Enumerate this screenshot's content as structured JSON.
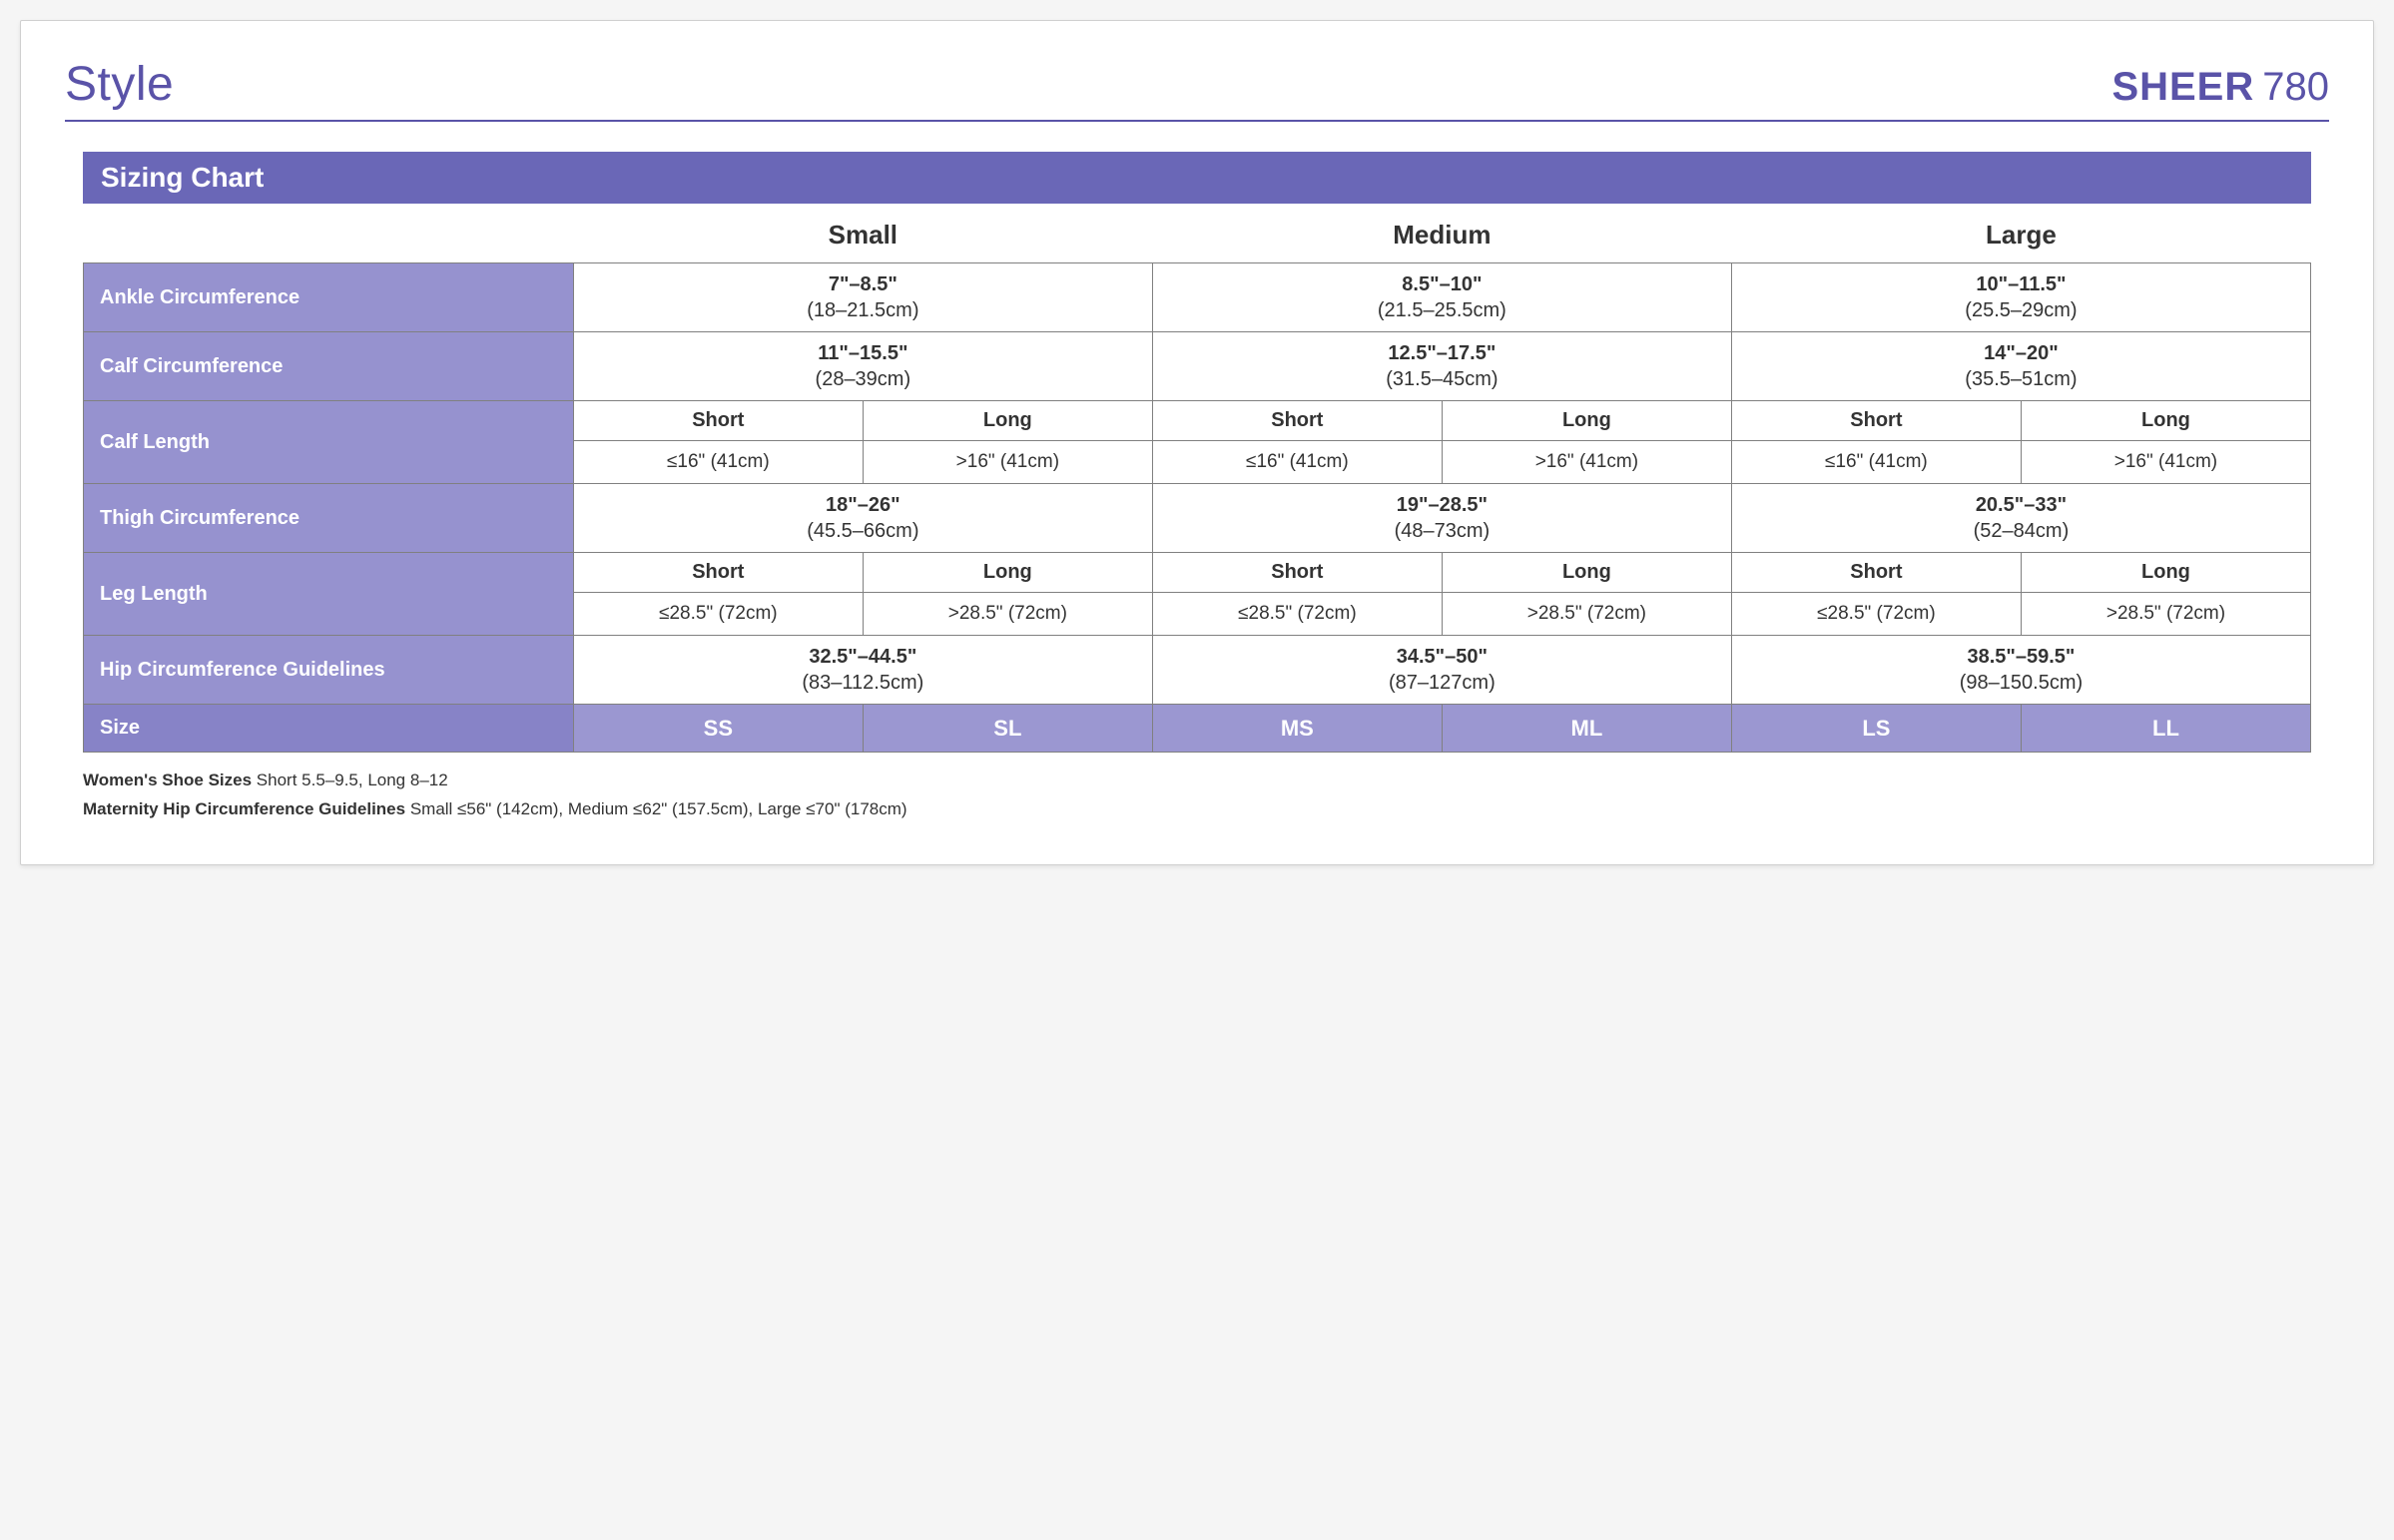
{
  "header": {
    "style_label": "Style",
    "product_name": "SHEER",
    "product_num": "780"
  },
  "section_title": "Sizing Chart",
  "size_cols": [
    "Small",
    "Medium",
    "Large"
  ],
  "sub_cols": {
    "short": "Short",
    "long": "Long"
  },
  "rows": {
    "ankle": {
      "label": "Ankle Circumference",
      "small": {
        "main": "7\"–8.5\"",
        "sub": "(18–21.5cm)"
      },
      "medium": {
        "main": "8.5\"–10\"",
        "sub": "(21.5–25.5cm)"
      },
      "large": {
        "main": "10\"–11.5\"",
        "sub": "(25.5–29cm)"
      }
    },
    "calf": {
      "label": "Calf Circumference",
      "small": {
        "main": "11\"–15.5\"",
        "sub": "(28–39cm)"
      },
      "medium": {
        "main": "12.5\"–17.5\"",
        "sub": "(31.5–45cm)"
      },
      "large": {
        "main": "14\"–20\"",
        "sub": "(35.5–51cm)"
      }
    },
    "calflen": {
      "label": "Calf Length",
      "small": {
        "short": "≤16\" (41cm)",
        "long": ">16\" (41cm)"
      },
      "medium": {
        "short": "≤16\" (41cm)",
        "long": ">16\" (41cm)"
      },
      "large": {
        "short": "≤16\" (41cm)",
        "long": ">16\" (41cm)"
      }
    },
    "thigh": {
      "label": "Thigh Circumference",
      "small": {
        "main": "18\"–26\"",
        "sub": "(45.5–66cm)"
      },
      "medium": {
        "main": "19\"–28.5\"",
        "sub": "(48–73cm)"
      },
      "large": {
        "main": "20.5\"–33\"",
        "sub": "(52–84cm)"
      }
    },
    "leglen": {
      "label": "Leg Length",
      "small": {
        "short": "≤28.5\" (72cm)",
        "long": ">28.5\" (72cm)"
      },
      "medium": {
        "short": "≤28.5\" (72cm)",
        "long": ">28.5\" (72cm)"
      },
      "large": {
        "short": "≤28.5\" (72cm)",
        "long": ">28.5\" (72cm)"
      }
    },
    "hip": {
      "label": "Hip Circumference Guidelines",
      "small": {
        "main": "32.5\"–44.5\"",
        "sub": "(83–112.5cm)"
      },
      "medium": {
        "main": "34.5\"–50\"",
        "sub": "(87–127cm)"
      },
      "large": {
        "main": "38.5\"–59.5\"",
        "sub": "(98–150.5cm)"
      }
    },
    "size": {
      "label": "Size",
      "small": {
        "short": "SS",
        "long": "SL"
      },
      "medium": {
        "short": "MS",
        "long": "ML"
      },
      "large": {
        "short": "LS",
        "long": "LL"
      }
    }
  },
  "footnotes": {
    "shoe_label": "Women's Shoe Sizes",
    "shoe_text": "Short 5.5–9.5, Long  8–12",
    "maternity_label": "Maternity Hip Circumference Guidelines",
    "maternity_text": "Small ≤56\" (142cm), Medium ≤62\" (157.5cm), Large ≤70\" (178cm)"
  },
  "colors": {
    "accent": "#5a53a8",
    "bar_bg": "#6a67b7",
    "rowhead_bg": "#9692cf",
    "sizehead_bg": "#8783c7",
    "sizecell_bg": "#9b97d1",
    "border": "#808080",
    "text": "#333333",
    "card_bg": "#ffffff"
  },
  "typography": {
    "title_fontsize": 48,
    "product_fontsize": 40,
    "section_fontsize": 28,
    "colhead_fontsize": 26,
    "rowhead_fontsize": 20,
    "cell_fontsize": 20,
    "footnote_fontsize": 17
  }
}
